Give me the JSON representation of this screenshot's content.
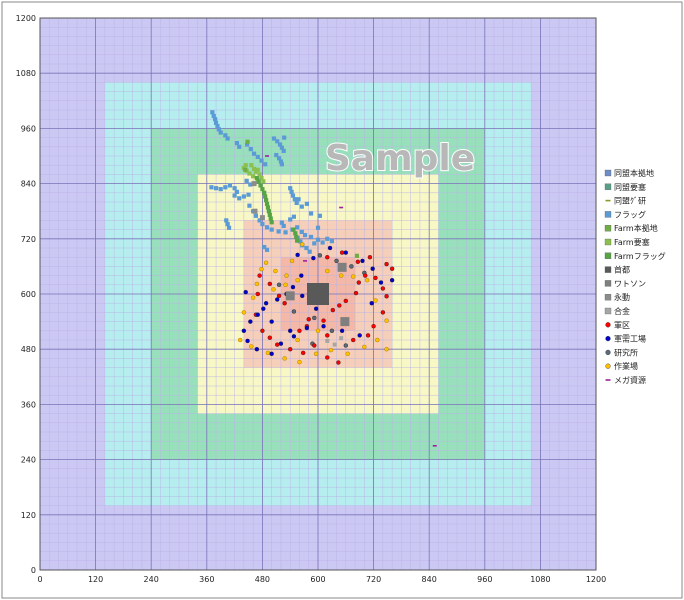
{
  "watermark": "Sample",
  "chart_data": {
    "type": "scatter",
    "title": "",
    "xlabel": "",
    "ylabel": "",
    "xlim": [
      0,
      1200
    ],
    "ylim": [
      0,
      1200
    ],
    "x_ticks": [
      0,
      120,
      240,
      360,
      480,
      600,
      720,
      840,
      960,
      1080,
      1200
    ],
    "y_ticks": [
      0,
      120,
      240,
      360,
      480,
      600,
      720,
      840,
      960,
      1080,
      1200
    ],
    "grid": true,
    "legend_position": "right",
    "zones": [
      {
        "range": [
          0,
          1200
        ],
        "color": "#ccc8f4"
      },
      {
        "range": [
          140,
          1060
        ],
        "color": "#b6eef0"
      },
      {
        "range": [
          240,
          960
        ],
        "color": "#98e0bc"
      },
      {
        "range": [
          340,
          860
        ],
        "color": "#f8f8c6"
      },
      {
        "range": [
          440,
          760
        ],
        "color": "#f6cfbb"
      },
      {
        "range": [
          520,
          680
        ],
        "color": "#f3b8a8"
      }
    ],
    "series": [
      {
        "name": "同盟本拠地",
        "marker": "square",
        "color": "#6d8ec8",
        "points": []
      },
      {
        "name": "同盟要塞",
        "marker": "square",
        "color": "#5a9e8a",
        "points": []
      },
      {
        "name": "同盟ｸﾞ研",
        "marker": "dash",
        "color": "#8a9a2a",
        "points": []
      },
      {
        "name": "フラッグ",
        "marker": "square",
        "color": "#5b9bd5",
        "points": [
          [
            372,
            995
          ],
          [
            375,
            987
          ],
          [
            378,
            980
          ],
          [
            380,
            972
          ],
          [
            383,
            965
          ],
          [
            386,
            958
          ],
          [
            390,
            951
          ],
          [
            400,
            945
          ],
          [
            405,
            938
          ],
          [
            425,
            928
          ],
          [
            430,
            920
          ],
          [
            447,
            925
          ],
          [
            455,
            915
          ],
          [
            462,
            905
          ],
          [
            470,
            898
          ],
          [
            478,
            890
          ],
          [
            486,
            882
          ],
          [
            505,
            938
          ],
          [
            512,
            932
          ],
          [
            518,
            925
          ],
          [
            522,
            918
          ],
          [
            526,
            911
          ],
          [
            510,
            902
          ],
          [
            516,
            895
          ],
          [
            520,
            888
          ],
          [
            522,
            882
          ],
          [
            527,
            940
          ],
          [
            370,
            832
          ],
          [
            380,
            830
          ],
          [
            390,
            828
          ],
          [
            400,
            832
          ],
          [
            410,
            836
          ],
          [
            420,
            830
          ],
          [
            425,
            822
          ],
          [
            420,
            814
          ],
          [
            430,
            808
          ],
          [
            440,
            812
          ],
          [
            450,
            816
          ],
          [
            446,
            846
          ],
          [
            454,
            838
          ],
          [
            540,
            830
          ],
          [
            543,
            822
          ],
          [
            546,
            814
          ],
          [
            550,
            806
          ],
          [
            554,
            798
          ],
          [
            558,
            806
          ],
          [
            402,
            760
          ],
          [
            405,
            752
          ],
          [
            408,
            744
          ],
          [
            452,
            792
          ],
          [
            460,
            780
          ],
          [
            466,
            770
          ],
          [
            474,
            760
          ],
          [
            480,
            752
          ],
          [
            490,
            745
          ],
          [
            500,
            740
          ],
          [
            515,
            736
          ],
          [
            530,
            734
          ],
          [
            545,
            740
          ],
          [
            555,
            745
          ],
          [
            565,
            735
          ],
          [
            572,
            728
          ],
          [
            585,
            724
          ],
          [
            600,
            718
          ],
          [
            610,
            712
          ],
          [
            620,
            720
          ],
          [
            630,
            715
          ],
          [
            522,
            755
          ],
          [
            526,
            748
          ],
          [
            540,
            762
          ],
          [
            548,
            768
          ],
          [
            556,
            722
          ],
          [
            562,
            714
          ],
          [
            566,
            706
          ],
          [
            484,
            702
          ],
          [
            490,
            696
          ],
          [
            575,
            700
          ],
          [
            582,
            692
          ],
          [
            592,
            710
          ],
          [
            604,
            770
          ],
          [
            585,
            775
          ],
          [
            565,
            790
          ],
          [
            576,
            796
          ],
          [
            600,
            744
          ]
        ]
      },
      {
        "name": "Farm本拠地",
        "marker": "square",
        "color": "#70ad47",
        "points": [
          [
            684,
            683
          ],
          [
            448,
            931
          ],
          [
            443,
            870
          ]
        ]
      },
      {
        "name": "Farm要塞",
        "marker": "square",
        "color": "#8cc04e",
        "points": [
          [
            440,
            874
          ],
          [
            446,
            868
          ],
          [
            452,
            862
          ],
          [
            460,
            856
          ],
          [
            466,
            866
          ],
          [
            470,
            848
          ],
          [
            474,
            860
          ],
          [
            478,
            852
          ],
          [
            482,
            845
          ],
          [
            456,
            880
          ],
          [
            444,
            880
          ],
          [
            462,
            872
          ],
          [
            470,
            870
          ]
        ]
      },
      {
        "name": "Farmフラッグ",
        "marker": "square",
        "color": "#56a444",
        "points": [
          [
            468,
            852
          ],
          [
            472,
            844
          ],
          [
            476,
            836
          ],
          [
            480,
            828
          ],
          [
            484,
            820
          ],
          [
            486,
            812
          ],
          [
            488,
            804
          ],
          [
            490,
            796
          ],
          [
            492,
            788
          ],
          [
            494,
            780
          ],
          [
            496,
            772
          ],
          [
            498,
            764
          ],
          [
            500,
            756
          ],
          [
            547,
            740
          ],
          [
            551,
            732
          ],
          [
            553,
            724
          ],
          [
            555,
            716
          ]
        ]
      },
      {
        "name": "首都",
        "marker": "square",
        "color": "#595959",
        "points": [
          [
            600,
            600
          ]
        ],
        "size": 22
      },
      {
        "name": "ワトソン",
        "marker": "square",
        "color": "#7f7f7f",
        "points": [
          [
            652,
            658
          ],
          [
            540,
            596
          ],
          [
            658,
            540
          ]
        ],
        "size": 9
      },
      {
        "name": "永動",
        "marker": "square",
        "color": "#8c8c8c",
        "points": [
          [
            480,
            766
          ],
          [
            464,
            780
          ],
          [
            462,
            840
          ]
        ],
        "size": 5
      },
      {
        "name": "合金",
        "marker": "square",
        "color": "#a6a6a6",
        "points": [
          [
            620,
            498
          ],
          [
            650,
            504
          ],
          [
            636,
            490
          ]
        ],
        "size": 4
      },
      {
        "name": "軍区",
        "marker": "circle",
        "color": "#ff0000",
        "points": [
          [
            620,
            680
          ],
          [
            652,
            690
          ],
          [
            686,
            670
          ],
          [
            712,
            680
          ],
          [
            748,
            665
          ],
          [
            760,
            655
          ],
          [
            702,
            640
          ],
          [
            688,
            625
          ],
          [
            724,
            635
          ],
          [
            740,
            612
          ],
          [
            748,
            595
          ],
          [
            682,
            602
          ],
          [
            660,
            585
          ],
          [
            646,
            575
          ],
          [
            632,
            565
          ],
          [
            612,
            542
          ],
          [
            580,
            545
          ],
          [
            576,
            530
          ],
          [
            560,
            520
          ],
          [
            528,
            580
          ],
          [
            516,
            596
          ],
          [
            496,
            622
          ],
          [
            474,
            640
          ],
          [
            470,
            600
          ],
          [
            466,
            555
          ],
          [
            480,
            520
          ],
          [
            496,
            505
          ],
          [
            512,
            490
          ],
          [
            540,
            480
          ],
          [
            568,
            472
          ],
          [
            592,
            488
          ],
          [
            620,
            462
          ],
          [
            644,
            451
          ],
          [
            676,
            500
          ],
          [
            708,
            510
          ],
          [
            720,
            530
          ],
          [
            740,
            560
          ],
          [
            620,
            510
          ]
        ]
      },
      {
        "name": "軍需工場",
        "marker": "circle",
        "color": "#0000cc",
        "points": [
          [
            556,
            685
          ],
          [
            590,
            678
          ],
          [
            626,
            700
          ],
          [
            660,
            690
          ],
          [
            696,
            672
          ],
          [
            718,
            655
          ],
          [
            564,
            640
          ],
          [
            546,
            615
          ],
          [
            532,
            600
          ],
          [
            512,
            588
          ],
          [
            488,
            580
          ],
          [
            482,
            568
          ],
          [
            470,
            555
          ],
          [
            454,
            540
          ],
          [
            440,
            520
          ],
          [
            448,
            498
          ],
          [
            468,
            480
          ],
          [
            500,
            470
          ],
          [
            520,
            492
          ],
          [
            548,
            508
          ],
          [
            576,
            526
          ],
          [
            612,
            530
          ],
          [
            652,
            520
          ],
          [
            690,
            510
          ],
          [
            716,
            580
          ],
          [
            736,
            625
          ],
          [
            760,
            630
          ],
          [
            444,
            604
          ],
          [
            566,
            596
          ],
          [
            582,
            584
          ],
          [
            596,
            568
          ],
          [
            500,
            540
          ],
          [
            540,
            520
          ]
        ]
      },
      {
        "name": "研究所",
        "marker": "circle",
        "color": "#5a6a7a",
        "points": [
          [
            604,
            684
          ],
          [
            640,
            672
          ],
          [
            672,
            660
          ],
          [
            700,
            646
          ],
          [
            516,
            620
          ],
          [
            548,
            562
          ],
          [
            592,
            548
          ],
          [
            630,
            520
          ],
          [
            660,
            488
          ],
          [
            588,
            492
          ]
        ]
      },
      {
        "name": "作業場",
        "marker": "circle",
        "color": "#ffc000",
        "points": [
          [
            508,
            650
          ],
          [
            478,
            654
          ],
          [
            468,
            622
          ],
          [
            460,
            592
          ],
          [
            440,
            560
          ],
          [
            432,
            500
          ],
          [
            456,
            486
          ],
          [
            492,
            472
          ],
          [
            528,
            460
          ],
          [
            560,
            452
          ],
          [
            596,
            470
          ],
          [
            628,
            478
          ],
          [
            664,
            470
          ],
          [
            700,
            485
          ],
          [
            728,
            500
          ],
          [
            748,
            480
          ],
          [
            748,
            542
          ],
          [
            724,
            586
          ],
          [
            706,
            630
          ],
          [
            676,
            638
          ],
          [
            650,
            640
          ],
          [
            620,
            650
          ],
          [
            556,
            630
          ],
          [
            532,
            640
          ],
          [
            504,
            610
          ],
          [
            556,
            500
          ],
          [
            530,
            620
          ],
          [
            600,
            520
          ],
          [
            566,
            708
          ],
          [
            488,
            668
          ],
          [
            544,
            672
          ]
        ]
      },
      {
        "name": "メガ資源",
        "marker": "dash",
        "color": "#a020a0",
        "points": [
          [
            650,
            788
          ],
          [
            572,
            672
          ],
          [
            852,
            270
          ],
          [
            490,
            900
          ]
        ]
      }
    ]
  }
}
